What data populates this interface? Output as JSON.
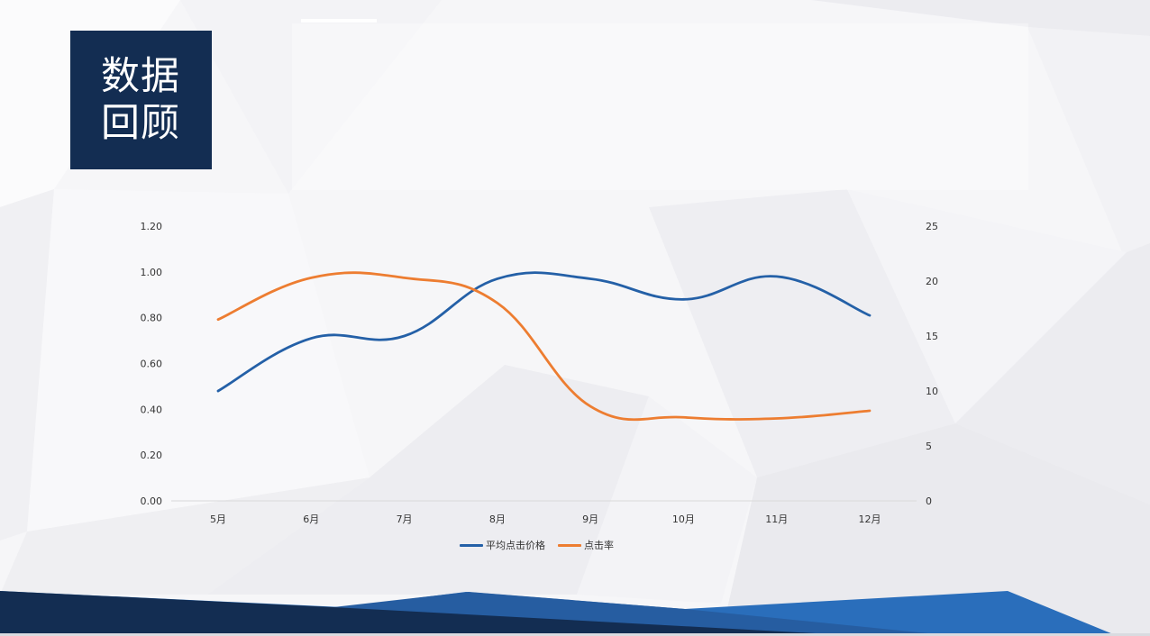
{
  "slide": {
    "title_line1": "数据",
    "title_line2": "回顾"
  },
  "colors": {
    "title_bg": "#132d52",
    "series_blue": "#2460a7",
    "series_orange": "#ed7d31",
    "footer_dark": "#132d52",
    "footer_blue": "#2a6ebb"
  },
  "chart_data": {
    "type": "line",
    "categories": [
      "5月",
      "6月",
      "7月",
      "8月",
      "9月",
      "10月",
      "11月",
      "12月"
    ],
    "series": [
      {
        "name": "平均点击价格",
        "axis": "left",
        "color": "#2460a7",
        "values": [
          0.48,
          0.71,
          0.72,
          0.97,
          0.97,
          0.88,
          0.98,
          0.81
        ]
      },
      {
        "name": "点击率",
        "axis": "right",
        "color": "#ed7d31",
        "values": [
          16.5,
          20.3,
          20.3,
          18.0,
          8.6,
          7.6,
          7.5,
          8.2
        ]
      }
    ],
    "y_left": {
      "min": 0,
      "max": 1.2,
      "ticks": [
        "0.00",
        "0.20",
        "0.40",
        "0.60",
        "0.80",
        "1.00",
        "1.20"
      ]
    },
    "y_right": {
      "min": 0,
      "max": 25,
      "ticks": [
        "0",
        "5",
        "10",
        "15",
        "20",
        "25"
      ]
    },
    "smooth": true,
    "grid": false,
    "legend_position": "bottom"
  }
}
